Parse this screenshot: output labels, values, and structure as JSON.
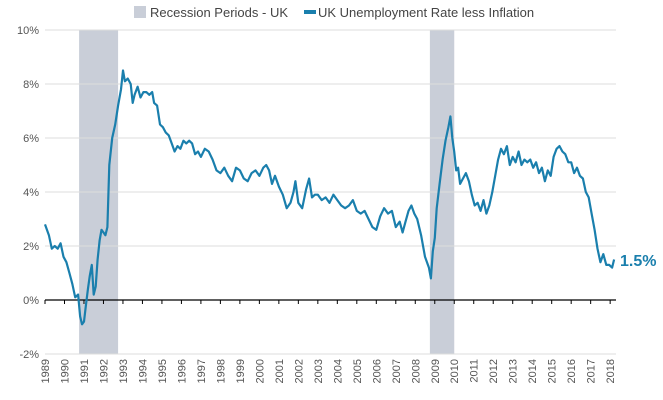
{
  "chart_data": {
    "type": "line",
    "title": "",
    "xlabel": "",
    "ylabel": "",
    "ylim": [
      -2,
      10
    ],
    "y_tick_values": [
      -2,
      0,
      2,
      4,
      6,
      8,
      10
    ],
    "y_tick_labels": [
      "-2%",
      "0%",
      "2%",
      "4%",
      "6%",
      "8%",
      "10%"
    ],
    "x_tick_labels": [
      "1989",
      "1990",
      "1991",
      "1992",
      "1993",
      "1994",
      "1995",
      "1996",
      "1997",
      "1998",
      "1999",
      "2000",
      "2001",
      "2002",
      "2003",
      "2004",
      "2005",
      "2006",
      "2007",
      "2008",
      "2009",
      "2010",
      "2011",
      "2012",
      "2013",
      "2014",
      "2015",
      "2016",
      "2017",
      "2018"
    ],
    "grid": "horizontal",
    "legend_position": "top",
    "legend": {
      "recession_label": "Recession Periods - UK",
      "series_label": "UK Unemployment Rate less Inflation"
    },
    "recessions": [
      {
        "start": 1990.75,
        "end": 1992.75
      },
      {
        "start": 2008.75,
        "end": 2010.0
      }
    ],
    "series": [
      {
        "name": "UK Unemployment Rate less Inflation",
        "color": "#1a7fad",
        "points": [
          [
            1989.0,
            2.8
          ],
          [
            1989.2,
            2.4
          ],
          [
            1989.35,
            1.9
          ],
          [
            1989.5,
            2.0
          ],
          [
            1989.65,
            1.9
          ],
          [
            1989.8,
            2.1
          ],
          [
            1989.95,
            1.6
          ],
          [
            1990.1,
            1.4
          ],
          [
            1990.25,
            1.0
          ],
          [
            1990.4,
            0.6
          ],
          [
            1990.55,
            0.1
          ],
          [
            1990.7,
            0.2
          ],
          [
            1990.8,
            -0.6
          ],
          [
            1990.9,
            -0.9
          ],
          [
            1991.0,
            -0.8
          ],
          [
            1991.1,
            -0.2
          ],
          [
            1991.2,
            0.4
          ],
          [
            1991.3,
            0.9
          ],
          [
            1991.4,
            1.3
          ],
          [
            1991.5,
            0.2
          ],
          [
            1991.6,
            0.5
          ],
          [
            1991.7,
            1.5
          ],
          [
            1991.8,
            2.2
          ],
          [
            1991.9,
            2.6
          ],
          [
            1992.0,
            2.5
          ],
          [
            1992.1,
            2.4
          ],
          [
            1992.2,
            2.7
          ],
          [
            1992.3,
            5.0
          ],
          [
            1992.45,
            6.0
          ],
          [
            1992.6,
            6.5
          ],
          [
            1992.75,
            7.2
          ],
          [
            1992.9,
            7.8
          ],
          [
            1993.0,
            8.5
          ],
          [
            1993.1,
            8.1
          ],
          [
            1993.25,
            8.2
          ],
          [
            1993.4,
            8.0
          ],
          [
            1993.5,
            7.3
          ],
          [
            1993.6,
            7.6
          ],
          [
            1993.75,
            7.9
          ],
          [
            1993.9,
            7.5
          ],
          [
            1994.05,
            7.7
          ],
          [
            1994.2,
            7.7
          ],
          [
            1994.35,
            7.6
          ],
          [
            1994.5,
            7.7
          ],
          [
            1994.6,
            7.3
          ],
          [
            1994.75,
            7.2
          ],
          [
            1994.9,
            6.5
          ],
          [
            1995.05,
            6.4
          ],
          [
            1995.2,
            6.2
          ],
          [
            1995.35,
            6.1
          ],
          [
            1995.5,
            5.8
          ],
          [
            1995.65,
            5.5
          ],
          [
            1995.8,
            5.7
          ],
          [
            1995.95,
            5.6
          ],
          [
            1996.1,
            5.9
          ],
          [
            1996.25,
            5.8
          ],
          [
            1996.4,
            5.9
          ],
          [
            1996.55,
            5.8
          ],
          [
            1996.7,
            5.4
          ],
          [
            1996.85,
            5.5
          ],
          [
            1997.0,
            5.3
          ],
          [
            1997.2,
            5.6
          ],
          [
            1997.4,
            5.5
          ],
          [
            1997.6,
            5.2
          ],
          [
            1997.8,
            4.8
          ],
          [
            1998.0,
            4.7
          ],
          [
            1998.2,
            4.9
          ],
          [
            1998.4,
            4.6
          ],
          [
            1998.6,
            4.4
          ],
          [
            1998.8,
            4.9
          ],
          [
            1999.0,
            4.8
          ],
          [
            1999.2,
            4.5
          ],
          [
            1999.4,
            4.4
          ],
          [
            1999.6,
            4.7
          ],
          [
            1999.8,
            4.8
          ],
          [
            2000.0,
            4.6
          ],
          [
            2000.2,
            4.9
          ],
          [
            2000.35,
            5.0
          ],
          [
            2000.5,
            4.8
          ],
          [
            2000.65,
            4.3
          ],
          [
            2000.8,
            4.6
          ],
          [
            2001.0,
            4.2
          ],
          [
            2001.2,
            3.9
          ],
          [
            2001.4,
            3.4
          ],
          [
            2001.6,
            3.6
          ],
          [
            2001.75,
            4.0
          ],
          [
            2001.85,
            4.4
          ],
          [
            2002.0,
            3.6
          ],
          [
            2002.2,
            3.4
          ],
          [
            2002.4,
            4.1
          ],
          [
            2002.55,
            4.5
          ],
          [
            2002.7,
            3.8
          ],
          [
            2002.85,
            3.9
          ],
          [
            2003.0,
            3.9
          ],
          [
            2003.2,
            3.7
          ],
          [
            2003.4,
            3.8
          ],
          [
            2003.6,
            3.6
          ],
          [
            2003.8,
            3.9
          ],
          [
            2004.0,
            3.7
          ],
          [
            2004.2,
            3.5
          ],
          [
            2004.4,
            3.4
          ],
          [
            2004.6,
            3.5
          ],
          [
            2004.8,
            3.7
          ],
          [
            2005.0,
            3.3
          ],
          [
            2005.2,
            3.2
          ],
          [
            2005.4,
            3.3
          ],
          [
            2005.6,
            3.0
          ],
          [
            2005.8,
            2.7
          ],
          [
            2006.0,
            2.6
          ],
          [
            2006.2,
            3.1
          ],
          [
            2006.4,
            3.4
          ],
          [
            2006.6,
            3.2
          ],
          [
            2006.8,
            3.3
          ],
          [
            2007.0,
            2.7
          ],
          [
            2007.2,
            2.9
          ],
          [
            2007.35,
            2.5
          ],
          [
            2007.5,
            2.9
          ],
          [
            2007.65,
            3.3
          ],
          [
            2007.8,
            3.5
          ],
          [
            2007.95,
            3.2
          ],
          [
            2008.1,
            3.0
          ],
          [
            2008.3,
            2.4
          ],
          [
            2008.5,
            1.6
          ],
          [
            2008.7,
            1.2
          ],
          [
            2008.8,
            0.8
          ],
          [
            2008.9,
            1.8
          ],
          [
            2009.0,
            2.3
          ],
          [
            2009.1,
            3.4
          ],
          [
            2009.25,
            4.3
          ],
          [
            2009.4,
            5.2
          ],
          [
            2009.55,
            5.9
          ],
          [
            2009.7,
            6.4
          ],
          [
            2009.8,
            6.8
          ],
          [
            2009.9,
            6.0
          ],
          [
            2010.0,
            5.5
          ],
          [
            2010.1,
            4.8
          ],
          [
            2010.2,
            4.9
          ],
          [
            2010.3,
            4.3
          ],
          [
            2010.45,
            4.5
          ],
          [
            2010.6,
            4.7
          ],
          [
            2010.75,
            4.4
          ],
          [
            2010.9,
            3.9
          ],
          [
            2011.05,
            3.5
          ],
          [
            2011.2,
            3.6
          ],
          [
            2011.35,
            3.3
          ],
          [
            2011.5,
            3.7
          ],
          [
            2011.65,
            3.2
          ],
          [
            2011.8,
            3.5
          ],
          [
            2011.95,
            4.0
          ],
          [
            2012.1,
            4.6
          ],
          [
            2012.25,
            5.2
          ],
          [
            2012.4,
            5.6
          ],
          [
            2012.55,
            5.4
          ],
          [
            2012.7,
            5.7
          ],
          [
            2012.85,
            5.0
          ],
          [
            2013.0,
            5.3
          ],
          [
            2013.15,
            5.1
          ],
          [
            2013.3,
            5.5
          ],
          [
            2013.45,
            5.0
          ],
          [
            2013.6,
            5.2
          ],
          [
            2013.75,
            5.1
          ],
          [
            2013.9,
            5.2
          ],
          [
            2014.05,
            4.9
          ],
          [
            2014.2,
            5.1
          ],
          [
            2014.35,
            4.7
          ],
          [
            2014.5,
            4.9
          ],
          [
            2014.65,
            4.4
          ],
          [
            2014.8,
            4.8
          ],
          [
            2014.95,
            4.6
          ],
          [
            2015.1,
            5.3
          ],
          [
            2015.25,
            5.6
          ],
          [
            2015.4,
            5.7
          ],
          [
            2015.55,
            5.5
          ],
          [
            2015.7,
            5.4
          ],
          [
            2015.85,
            5.1
          ],
          [
            2016.0,
            5.1
          ],
          [
            2016.15,
            4.7
          ],
          [
            2016.3,
            4.9
          ],
          [
            2016.45,
            4.6
          ],
          [
            2016.6,
            4.5
          ],
          [
            2016.75,
            4.0
          ],
          [
            2016.9,
            3.8
          ],
          [
            2017.05,
            3.2
          ],
          [
            2017.2,
            2.6
          ],
          [
            2017.35,
            1.9
          ],
          [
            2017.5,
            1.4
          ],
          [
            2017.65,
            1.7
          ],
          [
            2017.8,
            1.3
          ],
          [
            2017.95,
            1.3
          ],
          [
            2018.1,
            1.2
          ],
          [
            2018.2,
            1.5
          ]
        ]
      }
    ],
    "end_label": "1.5%",
    "recession_color": "#c9ced8",
    "zero_line_color": "#000000",
    "grid_color": "#dddddd"
  }
}
